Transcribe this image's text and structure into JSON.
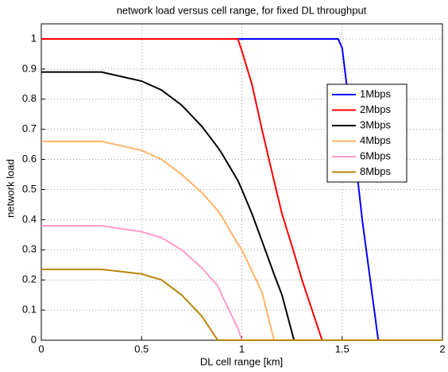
{
  "chart_data": {
    "type": "line",
    "title": "network load versus cell range, for fixed DL throughput",
    "x_label": "DL cell range [km]",
    "y_label": "network load",
    "x": [
      0,
      0.3,
      0.5,
      0.6,
      0.7,
      0.8,
      0.88,
      0.9,
      0.98,
      1,
      1.05,
      1.1,
      1.16,
      1.2,
      1.26,
      1.3,
      1.4,
      1.48,
      1.5,
      1.55,
      1.6,
      1.65,
      1.68,
      2
    ],
    "series": [
      {
        "name": "1Mbps",
        "color": "#0000ff",
        "values": [
          1,
          1,
          1,
          1,
          1,
          1,
          1,
          1,
          1,
          1,
          1,
          1,
          1,
          1,
          1,
          1,
          1,
          1,
          0.97,
          0.7,
          0.4,
          0.15,
          0,
          0
        ]
      },
      {
        "name": "2Mbps",
        "color": "#ff0000",
        "values": [
          1,
          1,
          1,
          1,
          1,
          1,
          1,
          1,
          1,
          0.96,
          0.85,
          0.7,
          0.53,
          0.42,
          0.29,
          0.2,
          0,
          0,
          0,
          0,
          0,
          0,
          0,
          0
        ]
      },
      {
        "name": "3Mbps",
        "color": "#000000",
        "values": [
          0.89,
          0.89,
          0.86,
          0.83,
          0.78,
          0.71,
          0.64,
          0.62,
          0.53,
          0.5,
          0.42,
          0.33,
          0.22,
          0.15,
          0,
          0,
          0,
          0,
          0,
          0,
          0,
          0,
          0,
          0
        ]
      },
      {
        "name": "4Mbps",
        "color": "#ffb366",
        "values": [
          0.66,
          0.66,
          0.63,
          0.6,
          0.55,
          0.49,
          0.43,
          0.41,
          0.32,
          0.3,
          0.23,
          0.16,
          0,
          0,
          0,
          0,
          0,
          0,
          0,
          0,
          0,
          0,
          0,
          0
        ]
      },
      {
        "name": "6Mbps",
        "color": "#ff99cc",
        "values": [
          0.38,
          0.38,
          0.36,
          0.34,
          0.3,
          0.24,
          0.18,
          0.15,
          0.04,
          0,
          0,
          0,
          0,
          0,
          0,
          0,
          0,
          0,
          0,
          0,
          0,
          0,
          0,
          0
        ]
      },
      {
        "name": "8Mbps",
        "color": "#b8860b",
        "values": [
          0.235,
          0.235,
          0.22,
          0.2,
          0.15,
          0.08,
          0,
          0,
          0,
          0,
          0,
          0,
          0,
          0,
          0,
          0,
          0,
          0,
          0,
          0,
          0,
          0,
          0,
          0
        ]
      }
    ],
    "xlim": [
      0,
      2
    ],
    "xticks": [
      0,
      0.5,
      1,
      1.5,
      2
    ],
    "ylim": [
      0,
      1.05
    ],
    "yticks": [
      0,
      0.1,
      0.2,
      0.3,
      0.4,
      0.5,
      0.6,
      0.7,
      0.8,
      0.9,
      1
    ],
    "grid": true,
    "legend": "right"
  }
}
